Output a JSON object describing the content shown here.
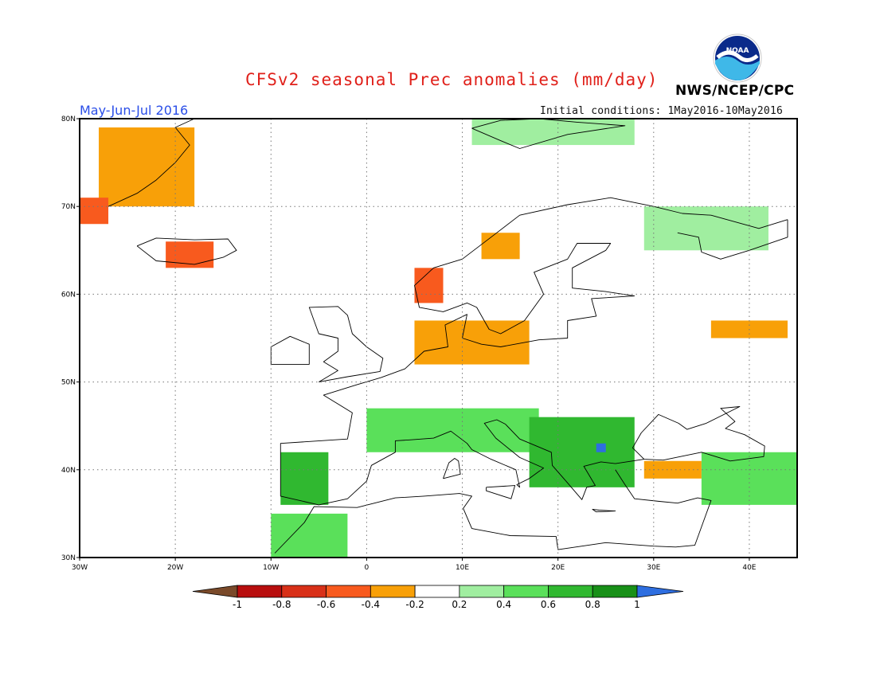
{
  "header": {
    "title": "CFSv2 seasonal Prec anomalies (mm/day)",
    "period": "May-Jun-Jul 2016",
    "initial_conditions": "Initial conditions: 1May2016-10May2016",
    "agency": "NWS/NCEP/CPC",
    "logo_text": "NOAA"
  },
  "map": {
    "lon_range": [
      -30,
      45
    ],
    "lat_range": [
      30,
      80
    ],
    "lon_labels": [
      {
        "lon": -30,
        "text": "30W"
      },
      {
        "lon": -20,
        "text": "20W"
      },
      {
        "lon": -10,
        "text": "10W"
      },
      {
        "lon": 0,
        "text": "0"
      },
      {
        "lon": 10,
        "text": "10E"
      },
      {
        "lon": 20,
        "text": "20E"
      },
      {
        "lon": 30,
        "text": "30E"
      },
      {
        "lon": 40,
        "text": "40E"
      }
    ],
    "lat_labels": [
      {
        "lat": 80,
        "text": "80N"
      },
      {
        "lat": 70,
        "text": "70N"
      },
      {
        "lat": 60,
        "text": "60N"
      },
      {
        "lat": 50,
        "text": "50N"
      },
      {
        "lat": 40,
        "text": "40N"
      },
      {
        "lat": 30,
        "text": "30N"
      }
    ],
    "grid": "dotted"
  },
  "colorbar": {
    "colors": [
      "#7a4a2a",
      "#b80e0e",
      "#d83018",
      "#f85a1e",
      "#f8a008",
      "#ffffff",
      "#a0eea0",
      "#5ae05a",
      "#30b830",
      "#189018",
      "#2e6ee0"
    ],
    "labels": [
      "-1",
      "-0.8",
      "-0.6",
      "-0.4",
      "-0.2",
      "0.2",
      "0.4",
      "0.6",
      "0.8",
      "1"
    ]
  },
  "anomaly_regions": [
    {
      "name": "Greenland",
      "value": -0.3,
      "lon": [
        -28,
        -18
      ],
      "lat": [
        70,
        79
      ]
    },
    {
      "name": "Greenland south tip",
      "value": -0.6,
      "lon": [
        -30,
        -27
      ],
      "lat": [
        68,
        71
      ]
    },
    {
      "name": "Iceland",
      "value": -0.5,
      "lon": [
        -21,
        -16
      ],
      "lat": [
        63,
        66
      ]
    },
    {
      "name": "Norway west coast",
      "value": -0.6,
      "lon": [
        5,
        8
      ],
      "lat": [
        59,
        63
      ]
    },
    {
      "name": "Norway north",
      "value": -0.3,
      "lon": [
        12,
        16
      ],
      "lat": [
        64,
        67
      ]
    },
    {
      "name": "Denmark and North Sea coast",
      "value": -0.4,
      "lon": [
        5,
        17
      ],
      "lat": [
        52,
        57
      ]
    },
    {
      "name": "Western Russia",
      "value": -0.3,
      "lon": [
        36,
        44
      ],
      "lat": [
        55,
        57
      ]
    },
    {
      "name": "Anatolia",
      "value": -0.4,
      "lon": [
        29,
        35
      ],
      "lat": [
        39,
        41
      ]
    },
    {
      "name": "Svalbard",
      "value": 0.3,
      "lon": [
        11,
        28
      ],
      "lat": [
        77,
        80
      ]
    },
    {
      "name": "Kola and NW Russia",
      "value": 0.3,
      "lon": [
        29,
        42
      ],
      "lat": [
        65,
        70
      ]
    },
    {
      "name": "Iberia",
      "value": 0.6,
      "lon": [
        -9,
        -4
      ],
      "lat": [
        36,
        42
      ]
    },
    {
      "name": "Morocco",
      "value": 0.4,
      "lon": [
        -10,
        -2
      ],
      "lat": [
        30,
        35
      ]
    },
    {
      "name": "Southern France and Alps",
      "value": 0.5,
      "lon": [
        0,
        18
      ],
      "lat": [
        42,
        47
      ]
    },
    {
      "name": "Balkans",
      "value": 0.6,
      "lon": [
        17,
        28
      ],
      "lat": [
        38,
        46
      ]
    },
    {
      "name": "Bulgaria",
      "value": 1.0,
      "lon": [
        24,
        25
      ],
      "lat": [
        42,
        43
      ]
    },
    {
      "name": "Northern Turkey and Caucasus",
      "value": 0.4,
      "lon": [
        35,
        45
      ],
      "lat": [
        36,
        42
      ]
    }
  ]
}
